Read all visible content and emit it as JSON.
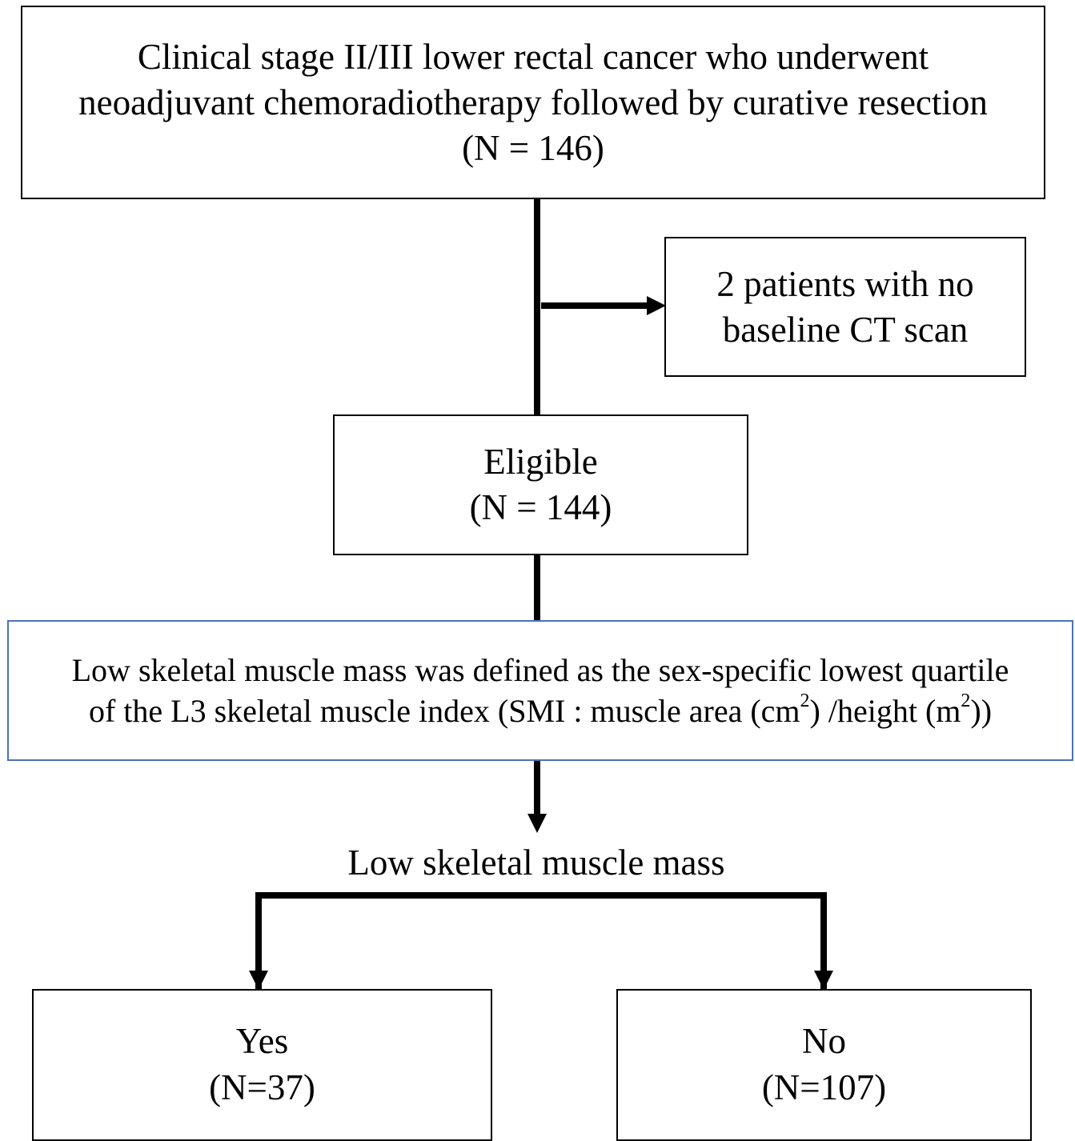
{
  "boxes": {
    "top": {
      "line1": "Clinical stage II/III lower rectal cancer who underwent",
      "line2": "neoadjuvant chemoradiotherapy followed by curative resection",
      "line3": "(N = 146)"
    },
    "excluded": {
      "line1": "2 patients with no",
      "line2": "baseline CT scan"
    },
    "eligible": {
      "line1": "Eligible",
      "line2": "(N = 144)"
    },
    "definition": {
      "line1": "Low skeletal muscle mass was defined as the sex-specific lowest quartile",
      "line2_a": "of the L3 skeletal muscle index (SMI : muscle area (cm",
      "sup1": "2",
      "line2_b": ") /height (m",
      "sup2": "2",
      "line2_c": "))"
    },
    "yes": {
      "line1": "Yes",
      "line2": "(N=37)"
    },
    "no": {
      "line1": "No",
      "line2": "(N=107)"
    }
  },
  "split_label": "Low skeletal muscle mass",
  "colors": {
    "line": "#000000",
    "definition_border": "#4a72b8"
  }
}
